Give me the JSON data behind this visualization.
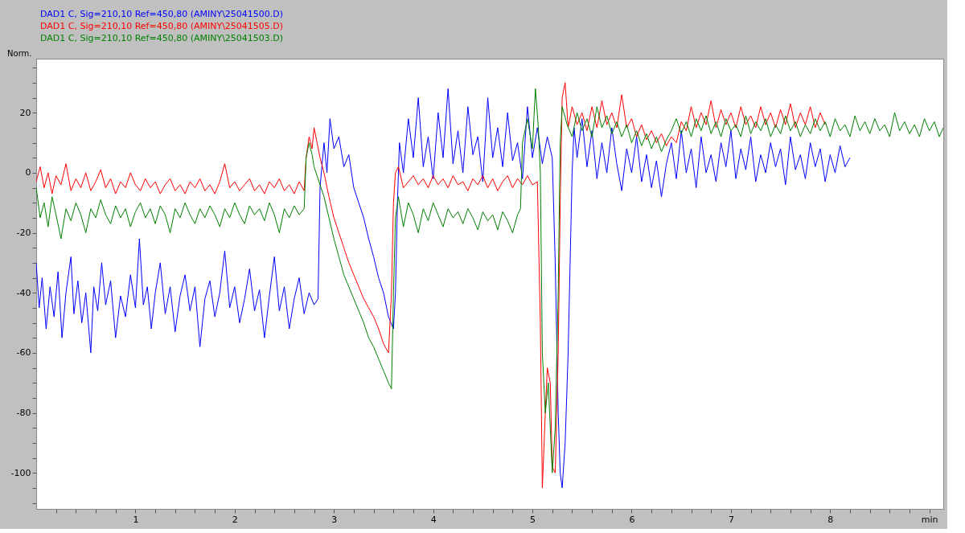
{
  "chart_data": {
    "type": "line",
    "ylabel": "Norm.",
    "legend": "top",
    "grid": false,
    "line_style": "solid",
    "marker": "none",
    "xlim": [
      0,
      9.14
    ],
    "ylim": [
      -112,
      38
    ],
    "xticks": [
      {
        "value": 0.2,
        "label": null
      },
      {
        "value": 0.4,
        "label": null
      },
      {
        "value": 0.6,
        "label": null
      },
      {
        "value": 0.8,
        "label": null
      },
      1,
      {
        "value": 1.2,
        "label": null
      },
      {
        "value": 1.4,
        "label": null
      },
      {
        "value": 1.6,
        "label": null
      },
      {
        "value": 1.8,
        "label": null
      },
      2,
      {
        "value": 2.2,
        "label": null
      },
      {
        "value": 2.4,
        "label": null
      },
      {
        "value": 2.6,
        "label": null
      },
      {
        "value": 2.8,
        "label": null
      },
      3,
      {
        "value": 3.2,
        "label": null
      },
      {
        "value": 3.4,
        "label": null
      },
      {
        "value": 3.6,
        "label": null
      },
      {
        "value": 3.8,
        "label": null
      },
      4,
      {
        "value": 4.2,
        "label": null
      },
      {
        "value": 4.4,
        "label": null
      },
      {
        "value": 4.6,
        "label": null
      },
      {
        "value": 4.8,
        "label": null
      },
      5,
      {
        "value": 5.2,
        "label": null
      },
      {
        "value": 5.4,
        "label": null
      },
      {
        "value": 5.6,
        "label": null
      },
      {
        "value": 5.8,
        "label": null
      },
      6,
      {
        "value": 6.2,
        "label": null
      },
      {
        "value": 6.4,
        "label": null
      },
      {
        "value": 6.6,
        "label": null
      },
      {
        "value": 6.8,
        "label": null
      },
      7,
      {
        "value": 7.2,
        "label": null
      },
      {
        "value": 7.4,
        "label": null
      },
      {
        "value": 7.6,
        "label": null
      },
      {
        "value": 7.8,
        "label": null
      },
      8,
      {
        "value": 8.2,
        "label": null
      },
      {
        "value": 8.4,
        "label": null
      },
      {
        "value": 8.6,
        "label": null
      },
      {
        "value": 8.8,
        "label": null
      },
      {
        "value": 9,
        "label": "min"
      }
    ],
    "yticks": [
      {
        "value": -110,
        "label": null
      },
      {
        "value": -105,
        "label": null
      },
      -100,
      {
        "value": -95,
        "label": null
      },
      {
        "value": -90,
        "label": null
      },
      {
        "value": -85,
        "label": null
      },
      -80,
      {
        "value": -75,
        "label": null
      },
      {
        "value": -70,
        "label": null
      },
      {
        "value": -65,
        "label": null
      },
      -60,
      {
        "value": -55,
        "label": null
      },
      {
        "value": -50,
        "label": null
      },
      {
        "value": -45,
        "label": null
      },
      -40,
      {
        "value": -35,
        "label": null
      },
      {
        "value": -30,
        "label": null
      },
      {
        "value": -25,
        "label": null
      },
      -20,
      {
        "value": -15,
        "label": null
      },
      {
        "value": -10,
        "label": null
      },
      {
        "value": -5,
        "label": null
      },
      0,
      {
        "value": 5,
        "label": null
      },
      {
        "value": 10,
        "label": null
      },
      {
        "value": 15,
        "label": null
      },
      20,
      {
        "value": 25,
        "label": null
      },
      {
        "value": 30,
        "label": null
      },
      {
        "value": 35,
        "label": null
      }
    ],
    "series": [
      {
        "name": "DAD1 C, Sig=210,10 Ref=450,80 (AMINY\\25041500.D)",
        "color": "#0000ff",
        "x": [
          0.0,
          0.03,
          0.06,
          0.1,
          0.14,
          0.18,
          0.22,
          0.26,
          0.3,
          0.35,
          0.38,
          0.42,
          0.46,
          0.5,
          0.55,
          0.58,
          0.62,
          0.66,
          0.7,
          0.75,
          0.8,
          0.85,
          0.9,
          0.95,
          1.0,
          1.04,
          1.08,
          1.12,
          1.16,
          1.2,
          1.25,
          1.3,
          1.35,
          1.4,
          1.45,
          1.5,
          1.55,
          1.6,
          1.65,
          1.7,
          1.75,
          1.8,
          1.85,
          1.9,
          1.95,
          2.0,
          2.05,
          2.1,
          2.15,
          2.2,
          2.25,
          2.3,
          2.35,
          2.4,
          2.45,
          2.5,
          2.55,
          2.6,
          2.65,
          2.7,
          2.75,
          2.8,
          2.84,
          2.86,
          2.9,
          2.93,
          2.96,
          3.0,
          3.05,
          3.1,
          3.15,
          3.2,
          3.25,
          3.3,
          3.35,
          3.4,
          3.45,
          3.5,
          3.55,
          3.6,
          3.62,
          3.64,
          3.66,
          3.7,
          3.75,
          3.8,
          3.85,
          3.9,
          3.95,
          4.0,
          4.05,
          4.1,
          4.15,
          4.2,
          4.25,
          4.3,
          4.35,
          4.4,
          4.45,
          4.5,
          4.55,
          4.6,
          4.65,
          4.7,
          4.75,
          4.8,
          4.85,
          4.9,
          4.95,
          5.0,
          5.05,
          5.1,
          5.15,
          5.2,
          5.23,
          5.26,
          5.28,
          5.3,
          5.33,
          5.36,
          5.38,
          5.4,
          5.42,
          5.45,
          5.5,
          5.55,
          5.6,
          5.65,
          5.7,
          5.75,
          5.8,
          5.85,
          5.9,
          5.95,
          6.0,
          6.05,
          6.1,
          6.15,
          6.2,
          6.25,
          6.3,
          6.35,
          6.4,
          6.45,
          6.5,
          6.55,
          6.6,
          6.65,
          6.7,
          6.75,
          6.8,
          6.85,
          6.9,
          6.95,
          7.0,
          7.05,
          7.1,
          7.15,
          7.2,
          7.25,
          7.3,
          7.35,
          7.4,
          7.45,
          7.5,
          7.55,
          7.6,
          7.65,
          7.7,
          7.75,
          7.8,
          7.85,
          7.9,
          7.95,
          8.0,
          8.05,
          8.1,
          8.15,
          8.2
        ],
        "values": [
          -30,
          -45,
          -35,
          -52,
          -38,
          -48,
          -33,
          -55,
          -40,
          -28,
          -47,
          -36,
          -50,
          -40,
          -60,
          -38,
          -46,
          -30,
          -44,
          -36,
          -55,
          -41,
          -48,
          -34,
          -45,
          -22,
          -44,
          -38,
          -52,
          -40,
          -30,
          -47,
          -38,
          -53,
          -41,
          -34,
          -46,
          -38,
          -58,
          -42,
          -36,
          -48,
          -40,
          -26,
          -45,
          -38,
          -50,
          -42,
          -32,
          -46,
          -39,
          -55,
          -41,
          -28,
          -46,
          -38,
          -52,
          -42,
          -35,
          -47,
          -40,
          -44,
          -42,
          -5,
          10,
          0,
          18,
          8,
          12,
          2,
          6,
          -5,
          -10,
          -15,
          -22,
          -28,
          -35,
          -40,
          -48,
          -52,
          -40,
          -10,
          10,
          0,
          18,
          5,
          25,
          2,
          12,
          -2,
          20,
          5,
          28,
          3,
          14,
          0,
          22,
          6,
          12,
          -3,
          25,
          5,
          15,
          2,
          20,
          4,
          10,
          -2,
          22,
          5,
          15,
          3,
          12,
          5,
          -30,
          -80,
          -100,
          -105,
          -90,
          -60,
          -30,
          0,
          15,
          5,
          18,
          2,
          14,
          -2,
          10,
          0,
          15,
          3,
          -6,
          8,
          0,
          12,
          -3,
          6,
          -5,
          4,
          -8,
          3,
          10,
          -2,
          14,
          0,
          8,
          -5,
          12,
          0,
          6,
          -3,
          10,
          2,
          14,
          -2,
          8,
          1,
          12,
          -3,
          6,
          0,
          10,
          2,
          8,
          -4,
          12,
          1,
          6,
          -2,
          10,
          2,
          8,
          -3,
          6,
          0,
          9,
          2,
          5
        ]
      },
      {
        "name": "DAD1 C, Sig=210,10 Ref=450,80 (AMINY\\25041505.D)",
        "color": "#ff0000",
        "x": [
          0.0,
          0.04,
          0.08,
          0.12,
          0.16,
          0.2,
          0.25,
          0.3,
          0.35,
          0.4,
          0.45,
          0.5,
          0.55,
          0.6,
          0.65,
          0.7,
          0.75,
          0.8,
          0.85,
          0.9,
          0.95,
          1.0,
          1.05,
          1.1,
          1.15,
          1.2,
          1.25,
          1.3,
          1.35,
          1.4,
          1.45,
          1.5,
          1.55,
          1.6,
          1.65,
          1.7,
          1.75,
          1.8,
          1.85,
          1.9,
          1.95,
          2.0,
          2.05,
          2.1,
          2.15,
          2.2,
          2.25,
          2.3,
          2.35,
          2.4,
          2.45,
          2.5,
          2.55,
          2.6,
          2.65,
          2.7,
          2.72,
          2.75,
          2.78,
          2.8,
          2.83,
          2.86,
          2.9,
          2.95,
          3.0,
          3.05,
          3.1,
          3.15,
          3.2,
          3.25,
          3.3,
          3.35,
          3.4,
          3.45,
          3.5,
          3.55,
          3.58,
          3.6,
          3.62,
          3.65,
          3.7,
          3.75,
          3.8,
          3.85,
          3.9,
          3.95,
          4.0,
          4.05,
          4.1,
          4.15,
          4.2,
          4.25,
          4.3,
          4.35,
          4.4,
          4.45,
          4.5,
          4.55,
          4.6,
          4.65,
          4.7,
          4.75,
          4.8,
          4.85,
          4.9,
          4.95,
          5.0,
          5.05,
          5.08,
          5.1,
          5.13,
          5.15,
          5.18,
          5.2,
          5.23,
          5.26,
          5.28,
          5.3,
          5.33,
          5.36,
          5.4,
          5.45,
          5.5,
          5.55,
          5.6,
          5.65,
          5.7,
          5.75,
          5.8,
          5.85,
          5.9,
          5.95,
          6.0,
          6.05,
          6.1,
          6.15,
          6.2,
          6.25,
          6.3,
          6.35,
          6.4,
          6.45,
          6.5,
          6.55,
          6.6,
          6.65,
          6.7,
          6.75,
          6.8,
          6.85,
          6.9,
          6.95,
          7.0,
          7.05,
          7.1,
          7.15,
          7.2,
          7.25,
          7.3,
          7.35,
          7.4,
          7.45,
          7.5,
          7.55,
          7.6,
          7.65,
          7.7,
          7.75,
          7.8,
          7.85,
          7.9,
          7.95
        ],
        "values": [
          -3,
          2,
          -5,
          0,
          -7,
          -1,
          -4,
          3,
          -6,
          -2,
          -5,
          0,
          -6,
          -3,
          1,
          -5,
          -2,
          -7,
          -3,
          -5,
          0,
          -4,
          -6,
          -2,
          -5,
          -3,
          -7,
          -4,
          -2,
          -6,
          -4,
          -7,
          -3,
          -5,
          -2,
          -6,
          -4,
          -7,
          -3,
          3,
          -5,
          -3,
          -6,
          -4,
          -2,
          -6,
          -4,
          -7,
          -3,
          -5,
          -2,
          -6,
          -4,
          -7,
          -3,
          -6,
          5,
          12,
          8,
          15,
          10,
          5,
          0,
          -8,
          -15,
          -20,
          -25,
          -30,
          -34,
          -38,
          -42,
          -45,
          -48,
          -52,
          -57,
          -60,
          -40,
          -10,
          0,
          2,
          -5,
          -3,
          -1,
          -4,
          -2,
          -5,
          -1,
          -4,
          -2,
          -5,
          -1,
          -4,
          -3,
          -6,
          -2,
          -4,
          -1,
          -5,
          -2,
          -6,
          -3,
          -1,
          -5,
          -2,
          -4,
          -1,
          -4,
          -3,
          -50,
          -105,
          -80,
          -65,
          -70,
          -98,
          -100,
          -60,
          -10,
          25,
          30,
          15,
          22,
          16,
          20,
          14,
          22,
          15,
          24,
          16,
          20,
          15,
          26,
          15,
          18,
          12,
          16,
          11,
          14,
          10,
          13,
          9,
          12,
          10,
          17,
          14,
          22,
          15,
          20,
          16,
          24,
          15,
          21,
          16,
          20,
          15,
          22,
          16,
          19,
          15,
          22,
          16,
          20,
          15,
          21,
          16,
          23,
          15,
          20,
          16,
          22,
          15,
          20,
          16
        ]
      },
      {
        "name": "DAD1 C, Sig=210,10 Ref=450,80 (AMINY\\25041503.D)",
        "color": "#008000",
        "x": [
          0.0,
          0.04,
          0.08,
          0.12,
          0.16,
          0.2,
          0.25,
          0.3,
          0.35,
          0.4,
          0.45,
          0.5,
          0.55,
          0.6,
          0.65,
          0.7,
          0.75,
          0.8,
          0.85,
          0.9,
          0.95,
          1.0,
          1.05,
          1.1,
          1.15,
          1.2,
          1.25,
          1.3,
          1.35,
          1.4,
          1.45,
          1.5,
          1.55,
          1.6,
          1.65,
          1.7,
          1.75,
          1.8,
          1.85,
          1.9,
          1.95,
          2.0,
          2.05,
          2.1,
          2.15,
          2.2,
          2.25,
          2.3,
          2.35,
          2.4,
          2.45,
          2.5,
          2.55,
          2.6,
          2.65,
          2.7,
          2.72,
          2.75,
          2.78,
          2.8,
          2.85,
          2.9,
          2.95,
          3.0,
          3.05,
          3.1,
          3.15,
          3.2,
          3.25,
          3.3,
          3.35,
          3.4,
          3.45,
          3.5,
          3.55,
          3.58,
          3.6,
          3.62,
          3.65,
          3.7,
          3.75,
          3.8,
          3.85,
          3.9,
          3.95,
          4.0,
          4.05,
          4.1,
          4.15,
          4.2,
          4.25,
          4.3,
          4.35,
          4.4,
          4.45,
          4.5,
          4.55,
          4.6,
          4.65,
          4.7,
          4.75,
          4.8,
          4.85,
          4.88,
          4.9,
          4.95,
          5.0,
          5.03,
          5.06,
          5.08,
          5.1,
          5.13,
          5.16,
          5.2,
          5.23,
          5.26,
          5.28,
          5.3,
          5.35,
          5.4,
          5.45,
          5.5,
          5.55,
          5.6,
          5.65,
          5.7,
          5.75,
          5.8,
          5.85,
          5.9,
          5.95,
          6.0,
          6.05,
          6.1,
          6.15,
          6.2,
          6.25,
          6.3,
          6.35,
          6.4,
          6.45,
          6.5,
          6.55,
          6.6,
          6.65,
          6.7,
          6.75,
          6.8,
          6.85,
          6.9,
          6.95,
          7.0,
          7.05,
          7.1,
          7.15,
          7.2,
          7.25,
          7.3,
          7.35,
          7.4,
          7.45,
          7.5,
          7.55,
          7.6,
          7.65,
          7.7,
          7.75,
          7.8,
          7.85,
          7.9,
          7.95,
          8.0,
          8.05,
          8.1,
          8.15,
          8.2,
          8.25,
          8.3,
          8.35,
          8.4,
          8.45,
          8.5,
          8.55,
          8.6,
          8.65,
          8.7,
          8.75,
          8.8,
          8.85,
          8.9,
          8.95,
          9.0,
          9.05,
          9.1,
          9.14
        ],
        "values": [
          -5,
          -15,
          -10,
          -18,
          -8,
          -14,
          -22,
          -12,
          -16,
          -10,
          -14,
          -20,
          -12,
          -15,
          -9,
          -14,
          -17,
          -11,
          -15,
          -12,
          -18,
          -13,
          -10,
          -15,
          -12,
          -17,
          -11,
          -14,
          -20,
          -12,
          -15,
          -10,
          -14,
          -17,
          -12,
          -15,
          -11,
          -14,
          -18,
          -12,
          -15,
          -10,
          -14,
          -17,
          -11,
          -14,
          -12,
          -16,
          -10,
          -14,
          -20,
          -12,
          -15,
          -11,
          -14,
          -12,
          5,
          10,
          6,
          2,
          -3,
          -8,
          -15,
          -22,
          -28,
          -34,
          -38,
          -42,
          -46,
          -50,
          -55,
          -58,
          -62,
          -66,
          -70,
          -72,
          -40,
          -15,
          -8,
          -18,
          -10,
          -14,
          -20,
          -12,
          -16,
          -10,
          -14,
          -18,
          -12,
          -15,
          -13,
          -17,
          -12,
          -15,
          -19,
          -13,
          -16,
          -14,
          -19,
          -13,
          -16,
          -20,
          -14,
          -12,
          10,
          18,
          8,
          28,
          15,
          0,
          -60,
          -80,
          -70,
          -100,
          -85,
          -40,
          10,
          22,
          16,
          12,
          20,
          14,
          18,
          12,
          22,
          15,
          19,
          13,
          17,
          12,
          16,
          10,
          14,
          9,
          13,
          8,
          12,
          7,
          11,
          14,
          18,
          13,
          17,
          12,
          18,
          14,
          19,
          13,
          17,
          12,
          18,
          14,
          16,
          12,
          19,
          13,
          17,
          14,
          18,
          12,
          16,
          13,
          19,
          14,
          17,
          12,
          16,
          13,
          18,
          14,
          17,
          12,
          18,
          14,
          16,
          12,
          19,
          14,
          17,
          13,
          18,
          14,
          16,
          12,
          20,
          14,
          17,
          13,
          16,
          12,
          18,
          14,
          17,
          12,
          15
        ]
      }
    ]
  }
}
